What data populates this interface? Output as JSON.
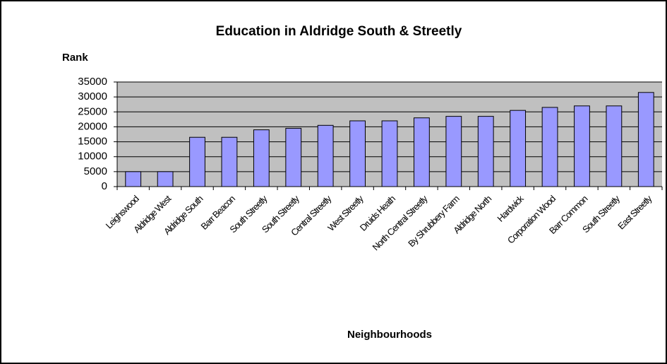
{
  "chart_data": {
    "type": "bar",
    "title": "Education in Aldridge South & Streetly",
    "y_label": "Rank",
    "x_label": "Neighbourhoods",
    "categories": [
      "Leighswood",
      "Aldridge West",
      "Aldridge South",
      "Barr Beacon",
      "South Streetly",
      "South Streetly",
      "Central Streetly",
      "West Streetly",
      "Druids Heath",
      "North Central Streetly",
      "By Shrubbery Farm",
      "Aldridge North",
      "Hardwick",
      "Corporation Wood",
      "Barr Common",
      "South Streetly",
      "East Streetly"
    ],
    "values": [
      5000,
      5000,
      16500,
      16500,
      19000,
      19500,
      20500,
      22000,
      22000,
      23000,
      23500,
      23500,
      25500,
      26500,
      27000,
      27000,
      31500
    ],
    "color": "#9999ff",
    "ylim": [
      0,
      35000
    ],
    "yticks": [
      0,
      5000,
      10000,
      15000,
      20000,
      25000,
      30000,
      35000
    ],
    "grid": true
  }
}
